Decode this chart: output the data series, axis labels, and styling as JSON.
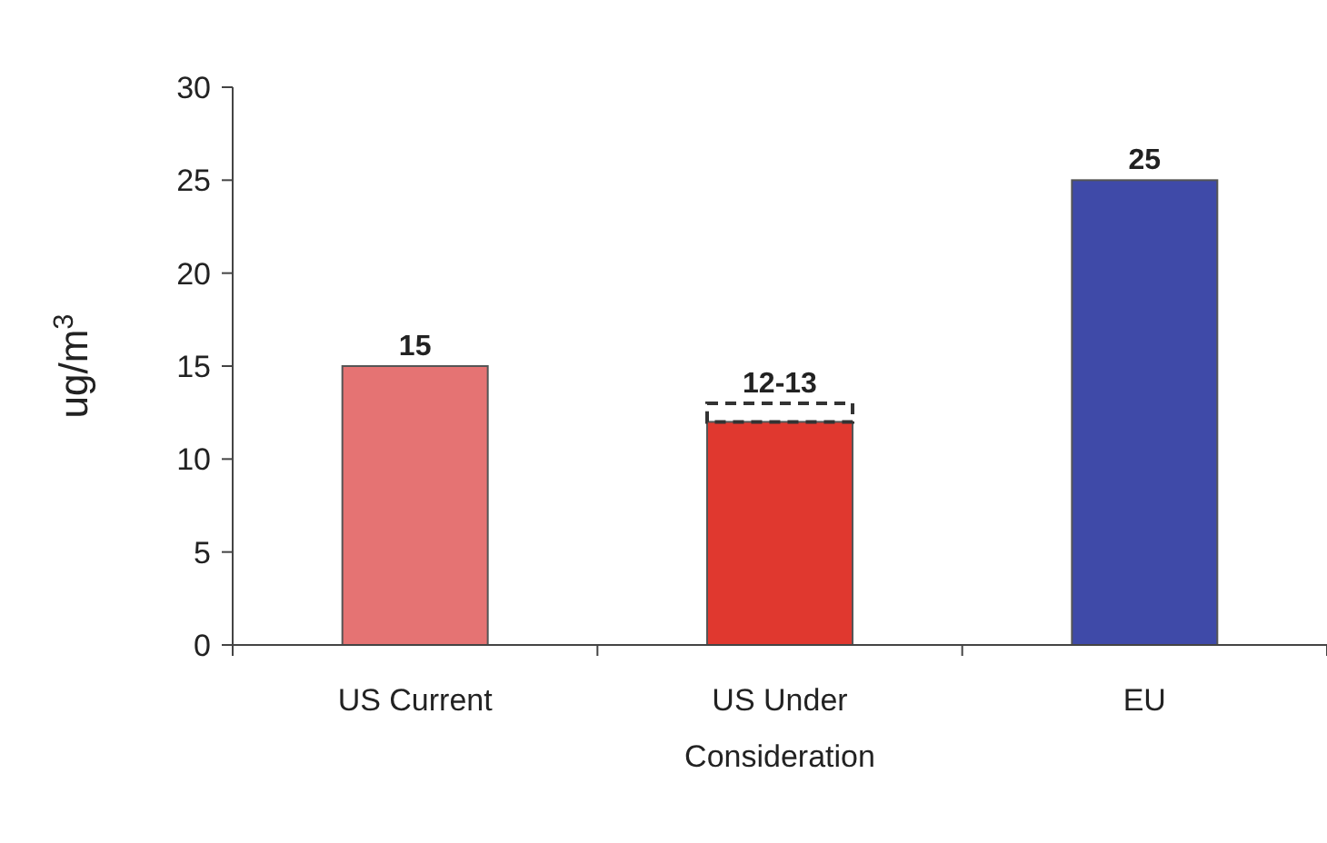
{
  "chart_data": {
    "type": "bar",
    "ylabel": "ug/m$^{3}$",
    "categories": [
      "US Current",
      "US Under Consideration",
      "EU"
    ],
    "stacked": true,
    "series": [
      {
        "colors": [
          "#e57373",
          "#e0382f",
          "#3f4aa8"
        ],
        "values": [
          15,
          12,
          25
        ]
      },
      {
        "color": "#333333",
        "line_style": "dashed",
        "values": [
          null,
          1,
          null
        ]
      }
    ],
    "totals": [
      "15",
      "12-13",
      "25"
    ],
    "ylim": [
      0,
      30
    ],
    "yticks": [
      0,
      5,
      10,
      15,
      20,
      25,
      30
    ],
    "grid": false
  }
}
